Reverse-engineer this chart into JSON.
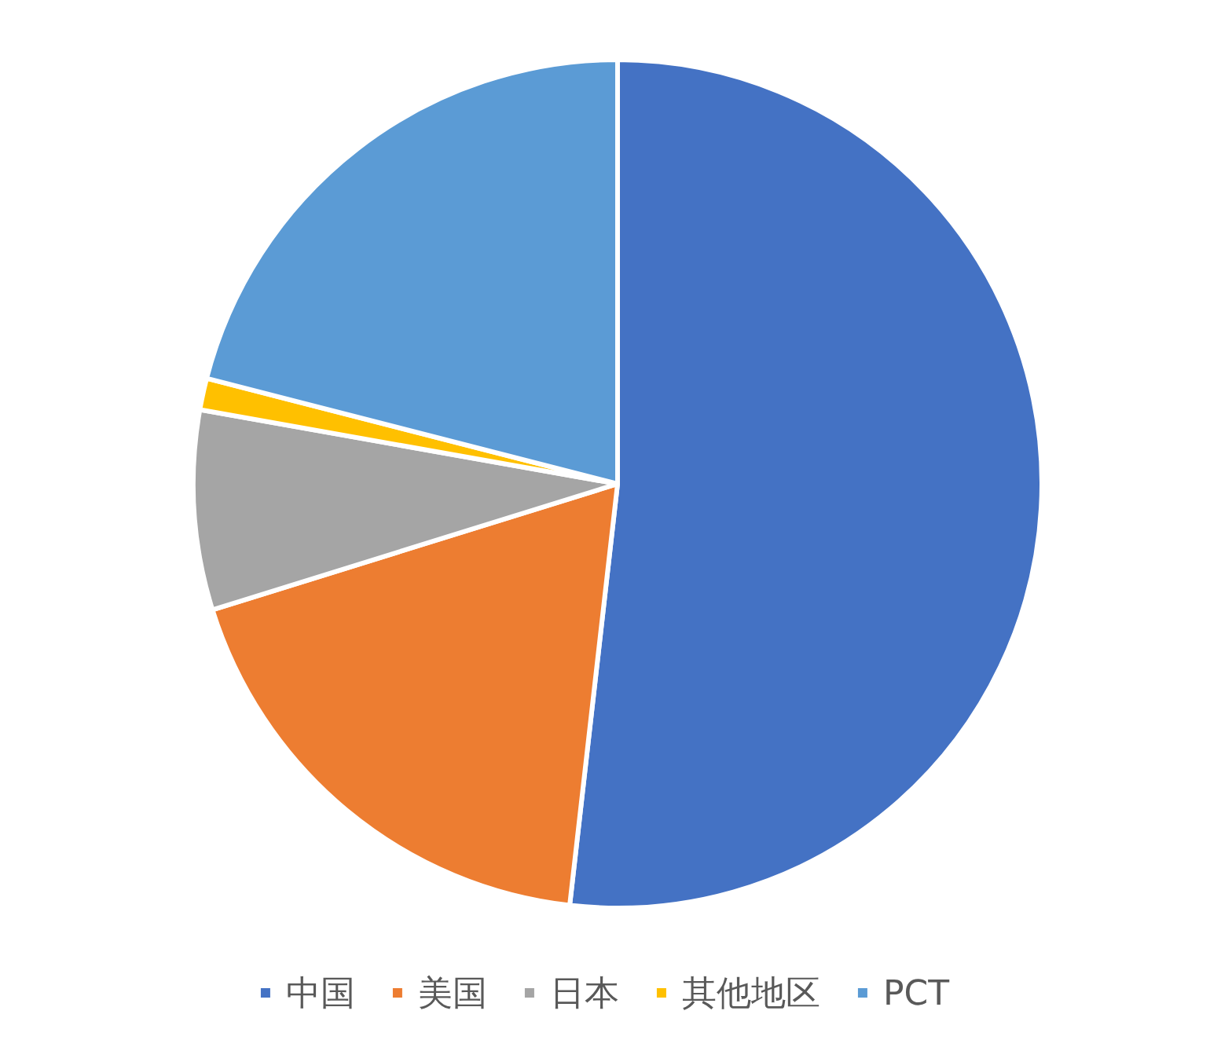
{
  "chart_data": {
    "type": "pie",
    "categories": [
      "中国",
      "美国",
      "日本",
      "其他地区",
      "PCT"
    ],
    "values": [
      51.8,
      18.4,
      7.6,
      1.2,
      21.0
    ],
    "colors": [
      "#4472c4",
      "#ed7d31",
      "#a5a5a5",
      "#ffc000",
      "#5b9bd5"
    ],
    "legend": "bottom"
  }
}
